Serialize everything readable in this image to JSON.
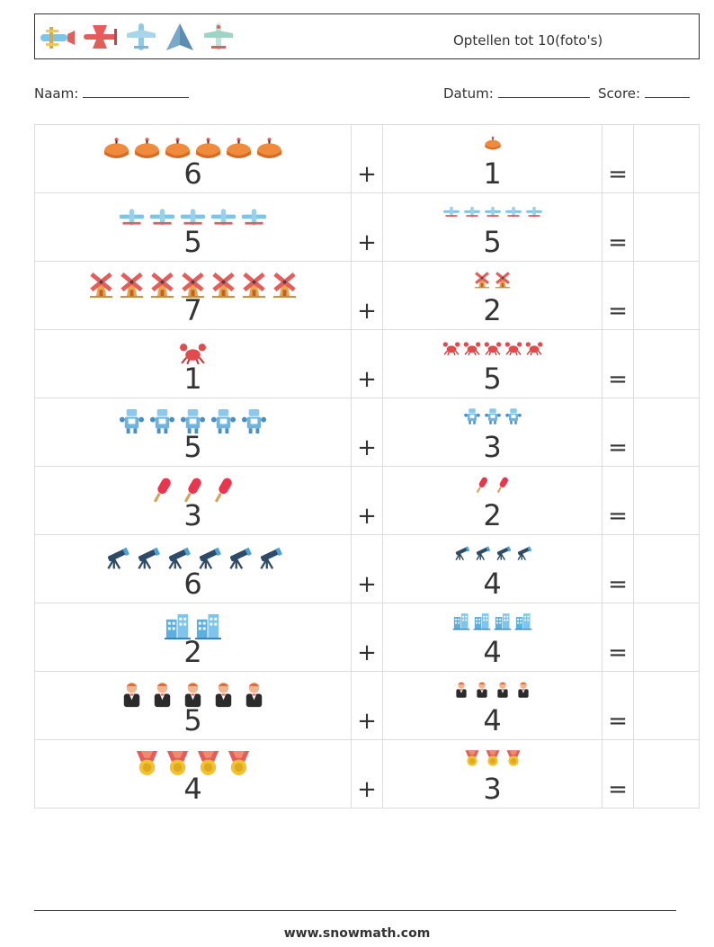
{
  "header": {
    "title": "Optellen tot 10(foto's)",
    "icons": [
      "biplane-icon",
      "red-plane-icon",
      "blue-plane-icon",
      "jet-icon",
      "airliner-icon"
    ]
  },
  "form": {
    "name_label": "Naam:",
    "date_label": "Datum:",
    "score_label": "Score:"
  },
  "operators": {
    "plus": "+",
    "equals": "="
  },
  "problems": [
    {
      "left_icon": "pie-icon",
      "left": "6",
      "right_icon": "pie-icon",
      "right": "1"
    },
    {
      "left_icon": "airplane-icon",
      "left": "5",
      "right_icon": "airplane-icon",
      "right": "5"
    },
    {
      "left_icon": "windmill-icon",
      "left": "7",
      "right_icon": "windmill-icon",
      "right": "2"
    },
    {
      "left_icon": "crab-icon",
      "left": "1",
      "right_icon": "crab-icon",
      "right": "5"
    },
    {
      "left_icon": "robot-icon",
      "left": "5",
      "right_icon": "robot-icon",
      "right": "3"
    },
    {
      "left_icon": "popsicle-icon",
      "left": "3",
      "right_icon": "popsicle-icon",
      "right": "2"
    },
    {
      "left_icon": "telescope-icon",
      "left": "6",
      "right_icon": "telescope-icon",
      "right": "4"
    },
    {
      "left_icon": "buildings-icon",
      "left": "2",
      "right_icon": "buildings-icon",
      "right": "4"
    },
    {
      "left_icon": "waiter-icon",
      "left": "5",
      "right_icon": "waiter-icon",
      "right": "4"
    },
    {
      "left_icon": "medal-icon",
      "left": "4",
      "right_icon": "medal-icon",
      "right": "3"
    }
  ],
  "footer": {
    "url": "www.snowmath.com"
  }
}
